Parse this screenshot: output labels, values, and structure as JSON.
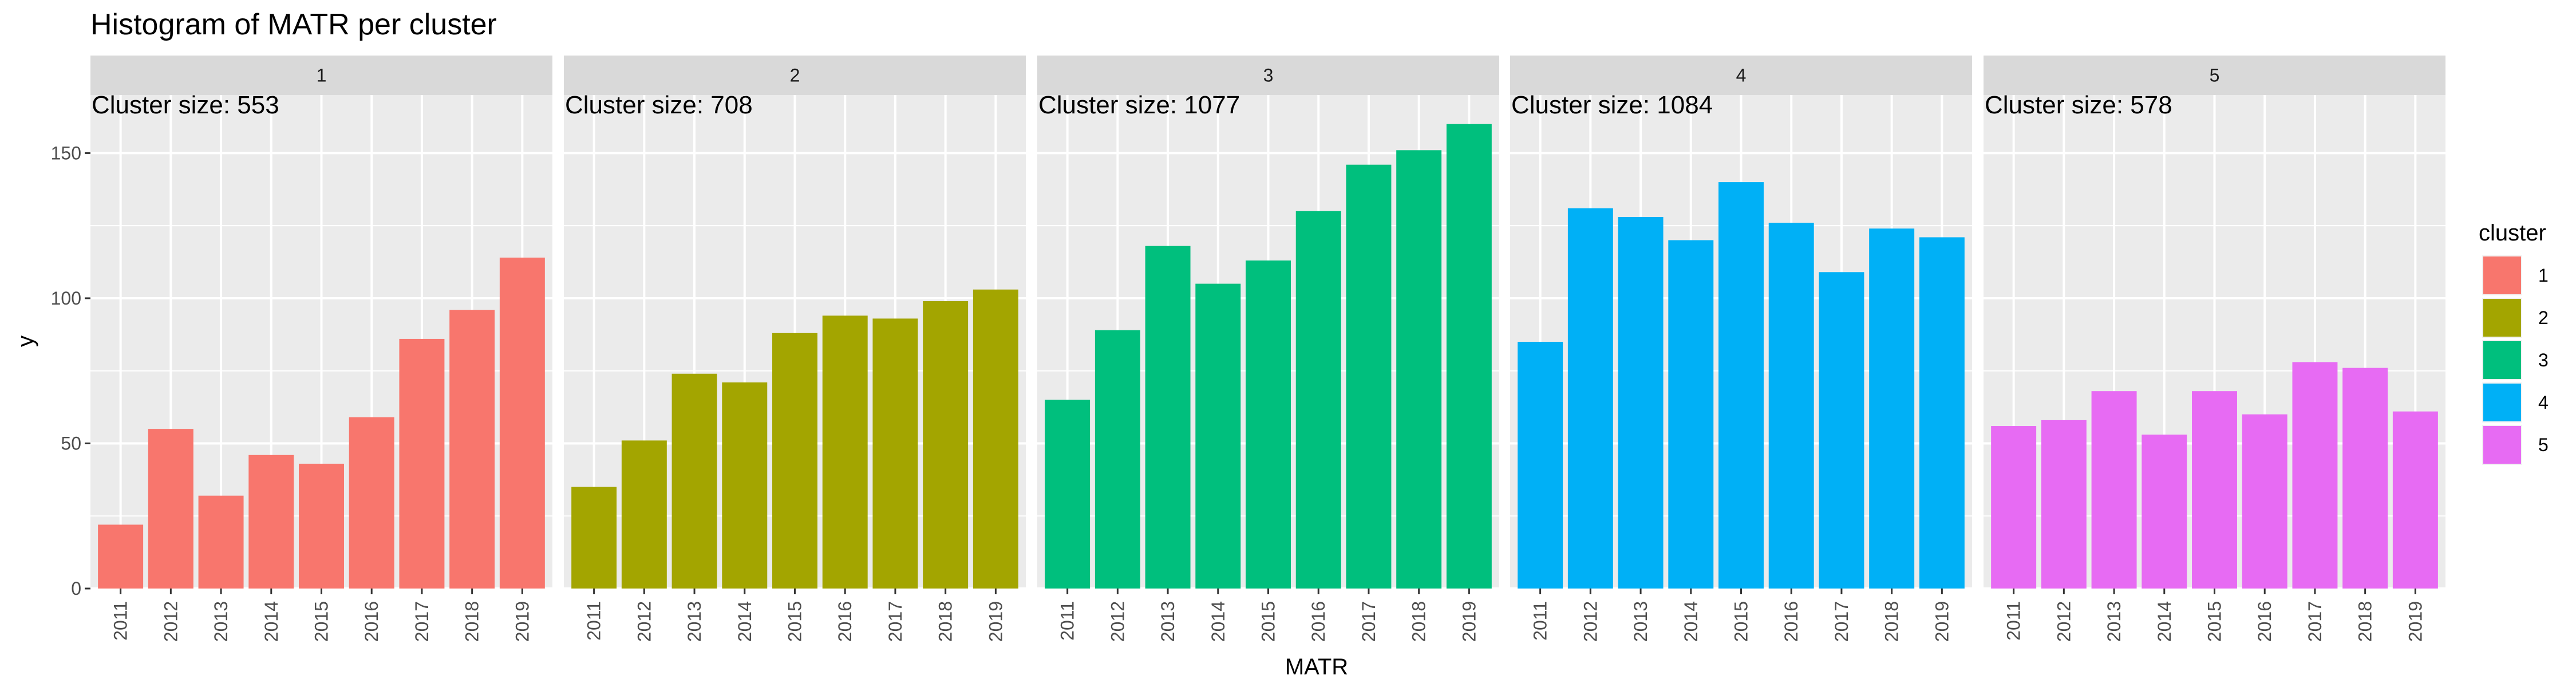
{
  "chart_data": {
    "type": "bar",
    "title": "Histogram of MATR per cluster",
    "xlabel": "MATR",
    "ylabel": "y",
    "ylim": [
      0,
      170
    ],
    "yticks": [
      0,
      50,
      100,
      150
    ],
    "categories": [
      "2011",
      "2012",
      "2013",
      "2014",
      "2015",
      "2016",
      "2017",
      "2018",
      "2019"
    ],
    "grid": true,
    "legend": {
      "title": "cluster",
      "position": "right",
      "entries": [
        "1",
        "2",
        "3",
        "4",
        "5"
      ]
    },
    "panels": [
      {
        "name": "1",
        "annotation": "Cluster size: 553",
        "color": "#F8766D",
        "values": [
          22,
          55,
          32,
          46,
          43,
          59,
          86,
          96,
          114
        ]
      },
      {
        "name": "2",
        "annotation": "Cluster size: 708",
        "color": "#A3A500",
        "values": [
          35,
          51,
          74,
          71,
          88,
          94,
          93,
          99,
          103
        ]
      },
      {
        "name": "3",
        "annotation": "Cluster size: 1077",
        "color": "#00BF7D",
        "values": [
          65,
          89,
          118,
          105,
          113,
          130,
          146,
          151,
          160
        ]
      },
      {
        "name": "4",
        "annotation": "Cluster size: 1084",
        "color": "#00B0F6",
        "values": [
          85,
          131,
          128,
          120,
          140,
          126,
          109,
          124,
          121
        ]
      },
      {
        "name": "5",
        "annotation": "Cluster size: 578",
        "color": "#E76BF3",
        "values": [
          56,
          58,
          68,
          53,
          68,
          60,
          78,
          76,
          61
        ]
      }
    ]
  }
}
